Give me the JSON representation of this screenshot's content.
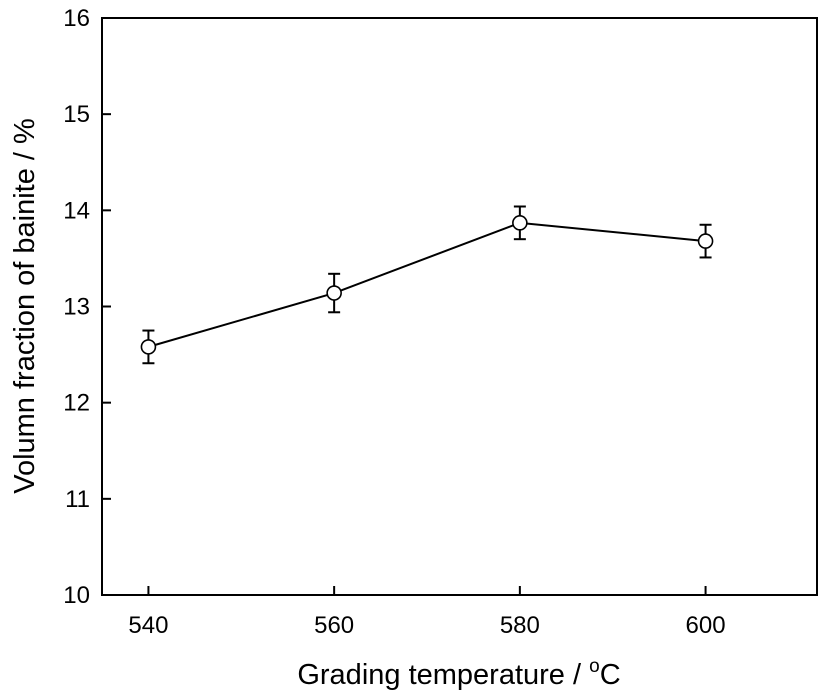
{
  "chart_data": {
    "type": "line",
    "title": "",
    "xlabel": "Grading temperature / ",
    "xlabel_unit_sup": "o",
    "xlabel_unit": "C",
    "ylabel": "Volumn fraction of bainite  / %",
    "xlim": [
      535,
      612
    ],
    "ylim": [
      10,
      16
    ],
    "x_ticks": [
      540,
      560,
      580,
      600
    ],
    "y_ticks": [
      10,
      11,
      12,
      13,
      14,
      15,
      16
    ],
    "grid": false,
    "series": [
      {
        "x": [
          540,
          560,
          580,
          600
        ],
        "y": [
          12.58,
          13.14,
          13.87,
          13.68
        ],
        "yerr": [
          0.17,
          0.2,
          0.17,
          0.17
        ],
        "marker": "open-circle",
        "color": "#000000"
      }
    ]
  }
}
